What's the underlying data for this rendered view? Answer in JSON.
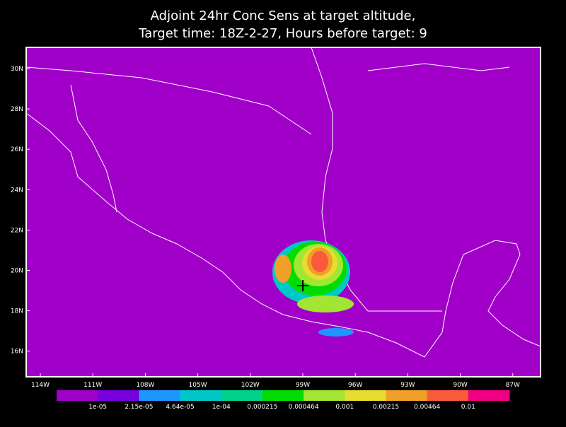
{
  "title": [
    "Adjoint 24hr Conc Sens at target altitude,",
    "Target time: 18Z-2-27, Hours before target: 9"
  ],
  "lat_labels": [
    "30N",
    "28N",
    "26N",
    "24N",
    "22N",
    "20N",
    "18N",
    "16N"
  ],
  "lon_labels": [
    "114W",
    "111W",
    "108W",
    "105W",
    "102W",
    "99W",
    "96W",
    "93W",
    "90W",
    "87W"
  ],
  "legend": {
    "colors": [
      "#a000c8",
      "#7800dc",
      "#1e96ff",
      "#00c8c8",
      "#00d28c",
      "#00dc00",
      "#a0e632",
      "#e6dc32",
      "#f0a028",
      "#fa5a3c",
      "#f00082"
    ],
    "labels": [
      "1e-05",
      "2.15e-05",
      "4.64e-05",
      "1e-04",
      "0.000215",
      "0.000464",
      "0.001",
      "0.00215",
      "0.00464",
      "0.01"
    ]
  }
}
